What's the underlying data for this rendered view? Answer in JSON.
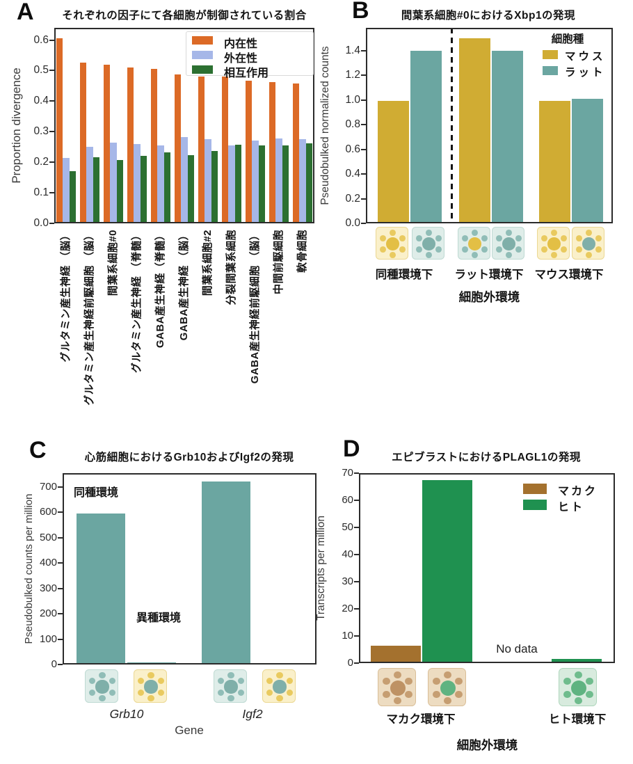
{
  "figure_background": "#ffffff",
  "spine_color": "#2b2b2b",
  "chart_data": [
    {
      "panel": "A",
      "type": "bar",
      "title": "それぞれの因子にて各細胞が制御されている割合",
      "ylabel": "Proportion divergence",
      "xlabel": "",
      "ylim": [
        0,
        0.64
      ],
      "grid": false,
      "legend_position": "upper right",
      "legend_frame": true,
      "ytick_labels": [
        "0.0",
        "0.1",
        "0.2",
        "0.3",
        "0.4",
        "0.5",
        "0.6"
      ],
      "categories": [
        "グルタミン産生神経 （脳）",
        "グルタミン産生神経前駆細胞 （脳）",
        "間葉系細胞#0",
        "グルタミン産生神経 （脊髄）",
        "GABA産生神経（脊髄）",
        "GABA産生神経 （脳）",
        "間葉系細胞#2",
        "分裂間葉系細胞",
        "GABA産生神経前駆細胞 （脳）",
        "中間前駆細胞",
        "軟骨細胞"
      ],
      "series": [
        {
          "name": "内在性",
          "color": "#DC6A26",
          "values": [
            0.605,
            0.527,
            0.519,
            0.511,
            0.506,
            0.487,
            0.481,
            0.481,
            0.468,
            0.463,
            0.458
          ]
        },
        {
          "name": "外在性",
          "color": "#A6B7E8",
          "values": [
            0.214,
            0.251,
            0.265,
            0.259,
            0.255,
            0.283,
            0.275,
            0.254,
            0.27,
            0.277,
            0.275
          ]
        },
        {
          "name": "相互作用",
          "color": "#2C7031",
          "values": [
            0.171,
            0.217,
            0.207,
            0.22,
            0.233,
            0.223,
            0.237,
            0.258,
            0.256,
            0.256,
            0.261
          ]
        }
      ]
    },
    {
      "panel": "B",
      "type": "bar",
      "title": "間葉系細胞#0におけるXbp1の発現",
      "ylabel": "Pseudobulked normalized counts",
      "xlabel": "細胞外環境",
      "ylim": [
        0,
        1.585
      ],
      "grid": false,
      "legend_title": "細胞種",
      "legend_position": "upper right",
      "ytick_labels": [
        "0.0",
        "0.2",
        "0.4",
        "0.6",
        "0.8",
        "1.0",
        "1.2",
        "1.4"
      ],
      "categories": [
        "同種環境下",
        "ラット環境下",
        "マウス環境下"
      ],
      "series": [
        {
          "name": "マウス",
          "color": "#D0AC33",
          "values": [
            0.99,
            1.5,
            0.99
          ]
        },
        {
          "name": "ラット",
          "color": "#6BA6A1",
          "values": [
            1.4,
            1.4,
            1.01
          ]
        }
      ],
      "dashed_separator_after_category": 1,
      "icons": [
        {
          "name": "mouse-cell-mouse-env",
          "bg": "#FAF0CA",
          "border": "#EBD893",
          "center": "#E3BF45",
          "dots": "#E9CA5F"
        },
        {
          "name": "rat-cell-rat-env",
          "bg": "#DFEDE9",
          "border": "#BFDAD3",
          "center": "#7FAFA9",
          "dots": "#90BDB7"
        },
        {
          "name": "mouse-cell-rat-env",
          "bg": "#DFEDE9",
          "border": "#BFDAD3",
          "center": "#E3BF45",
          "dots": "#90BDB7"
        },
        {
          "name": "rat-cell-rat-env",
          "bg": "#DFEDE9",
          "border": "#BFDAD3",
          "center": "#7FAFA9",
          "dots": "#90BDB7"
        },
        {
          "name": "mouse-cell-mouse-env",
          "bg": "#FAF0CA",
          "border": "#EBD893",
          "center": "#E3BF45",
          "dots": "#E9CA5F"
        },
        {
          "name": "rat-cell-mouse-env",
          "bg": "#FAF0CA",
          "border": "#EBD893",
          "center": "#7FAFA9",
          "dots": "#E9CA5F"
        }
      ]
    },
    {
      "panel": "C",
      "type": "bar",
      "title": "心筋細胞におけるGrb10およびIgf2の発現",
      "ylabel": "Pseudobulked counts per million",
      "xlabel": "Gene",
      "ylim": [
        0,
        755
      ],
      "grid": false,
      "ytick_labels": [
        "0",
        "100",
        "200",
        "300",
        "400",
        "500",
        "600",
        "700"
      ],
      "categories": [
        "Grb10",
        "Igf2"
      ],
      "series": [
        {
          "name": "同種環境",
          "color": "#6BA6A1",
          "values": [
            597,
            722
          ]
        },
        {
          "name": "異種環境",
          "color": "#6BA6A1",
          "values": [
            8,
            0
          ]
        }
      ],
      "annotations": [
        {
          "text": "同種環境"
        },
        {
          "text": "異種環境"
        }
      ],
      "icons": [
        {
          "name": "same-species-env",
          "bg": "#DFEDE9",
          "border": "#BFDAD3",
          "center": "#7FAFA9",
          "dots": "#90BDB7"
        },
        {
          "name": "cross-species-env",
          "bg": "#FAF0CA",
          "border": "#EBD893",
          "center": "#7FAFA9",
          "dots": "#E9CA5F"
        },
        {
          "name": "same-species-env",
          "bg": "#DFEDE9",
          "border": "#BFDAD3",
          "center": "#7FAFA9",
          "dots": "#90BDB7"
        },
        {
          "name": "cross-species-env",
          "bg": "#FAF0CA",
          "border": "#EBD893",
          "center": "#7FAFA9",
          "dots": "#E9CA5F"
        }
      ]
    },
    {
      "panel": "D",
      "type": "bar",
      "title": "エピブラストにおけるPLAGL1の発現",
      "ylabel": "Transcripts per million",
      "xlabel": "細胞外環境",
      "ylim": [
        0,
        70
      ],
      "grid": false,
      "legend_position": "upper right",
      "ytick_labels": [
        "0",
        "10",
        "20",
        "30",
        "40",
        "50",
        "60",
        "70"
      ],
      "categories": [
        "マカク環境下",
        "ヒト環境下"
      ],
      "series": [
        {
          "name": "マカク",
          "color": "#A4712E",
          "values": [
            6.5,
            null
          ]
        },
        {
          "name": "ヒト",
          "color": "#1F9150",
          "values": [
            67.5,
            1.5
          ]
        }
      ],
      "no_data_label": "No data",
      "icons": [
        {
          "name": "macaque-cell-macaque-env",
          "bg": "#EDDCC1",
          "border": "#D9BE97",
          "center": "#BE9264",
          "dots": "#C69E72"
        },
        {
          "name": "human-cell-macaque-env",
          "bg": "#EDDCC1",
          "border": "#D9BE97",
          "center": "#5FB381",
          "dots": "#C69E72"
        },
        {
          "name": "human-cell-human-env",
          "bg": "#D8EBDE",
          "border": "#AED6BC",
          "center": "#5FB381",
          "dots": "#6FBC8D"
        }
      ]
    }
  ]
}
